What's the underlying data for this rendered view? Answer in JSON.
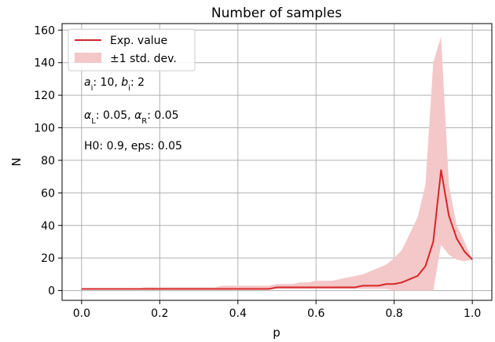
{
  "chart_data": {
    "type": "line",
    "title": "Number of samples",
    "xlabel": "p",
    "ylabel": "N",
    "xlim": [
      -0.05,
      1.05
    ],
    "ylim": [
      -6,
      164
    ],
    "xticks": [
      0.0,
      0.2,
      0.4,
      0.6,
      0.8,
      1.0
    ],
    "xtick_labels": [
      "0.0",
      "0.2",
      "0.4",
      "0.6",
      "0.8",
      "1.0"
    ],
    "yticks": [
      0,
      20,
      40,
      60,
      80,
      100,
      120,
      140,
      160
    ],
    "ytick_labels": [
      "0",
      "20",
      "40",
      "60",
      "80",
      "100",
      "120",
      "140",
      "160"
    ],
    "grid": true,
    "legend_position": "top-left",
    "x": [
      0.0,
      0.02,
      0.04,
      0.06,
      0.08,
      0.1,
      0.12,
      0.14,
      0.16,
      0.18,
      0.2,
      0.22,
      0.24,
      0.26,
      0.28,
      0.3,
      0.32,
      0.34,
      0.36,
      0.38,
      0.4,
      0.42,
      0.44,
      0.46,
      0.48,
      0.5,
      0.52,
      0.54,
      0.56,
      0.58,
      0.6,
      0.62,
      0.64,
      0.66,
      0.68,
      0.7,
      0.72,
      0.74,
      0.76,
      0.78,
      0.8,
      0.82,
      0.84,
      0.86,
      0.88,
      0.9,
      0.92,
      0.94,
      0.96,
      0.98,
      1.0
    ],
    "series": [
      {
        "name": "Exp. value",
        "color": "#d62728",
        "values": [
          1,
          1,
          1,
          1,
          1,
          1,
          1,
          1,
          1,
          1,
          1,
          1,
          1,
          1,
          1,
          1,
          1,
          1,
          1,
          1,
          1,
          1,
          1,
          1,
          1,
          2,
          2,
          2,
          2,
          2,
          2,
          2,
          2,
          2,
          2,
          2,
          3,
          3,
          3,
          4,
          4,
          5,
          7,
          9,
          15,
          30,
          74,
          46,
          32,
          24,
          19
        ]
      },
      {
        "name": "±1 std. dev.",
        "color": "#f4c7c8",
        "type": "band",
        "lower": [
          1,
          1,
          1,
          1,
          1,
          1,
          1,
          1,
          1,
          1,
          1,
          1,
          1,
          1,
          1,
          1,
          1,
          1,
          1,
          1,
          1,
          1,
          1,
          1,
          1,
          1,
          1,
          1,
          1,
          1,
          1,
          1,
          1,
          1,
          1,
          1,
          1,
          1,
          1,
          1,
          0,
          0,
          0,
          0,
          0,
          0,
          28,
          22,
          19,
          18,
          19
        ],
        "upper": [
          1,
          1,
          1,
          1,
          1,
          1,
          1,
          1,
          2,
          2,
          2,
          2,
          2,
          2,
          2,
          2,
          2,
          2,
          3,
          3,
          3,
          3,
          3,
          3,
          3,
          4,
          4,
          4,
          5,
          5,
          6,
          6,
          6,
          7,
          8,
          9,
          10,
          12,
          14,
          16,
          20,
          25,
          35,
          45,
          65,
          140,
          156,
          65,
          40,
          30,
          19
        ]
      }
    ],
    "annotations": [
      {
        "text": "a_i: 10, b_i: 2",
        "parts": [
          {
            "t": "a"
          },
          {
            "t": "i",
            "sub": true
          },
          {
            "t": ": 10, "
          },
          {
            "t": "b"
          },
          {
            "t": "i",
            "sub": true
          },
          {
            "t": ": 2"
          }
        ]
      },
      {
        "text": "α_L: 0.05, α_R: 0.05",
        "parts": [
          {
            "t": "α"
          },
          {
            "t": "L",
            "sub": true
          },
          {
            "t": ": 0.05, "
          },
          {
            "t": "α"
          },
          {
            "t": "R",
            "sub": true
          },
          {
            "t": ": 0.05"
          }
        ]
      },
      {
        "text": "H0: 0.9, eps: 0.05",
        "parts": [
          {
            "t": "H0: 0.9, eps: 0.05"
          }
        ]
      }
    ]
  }
}
